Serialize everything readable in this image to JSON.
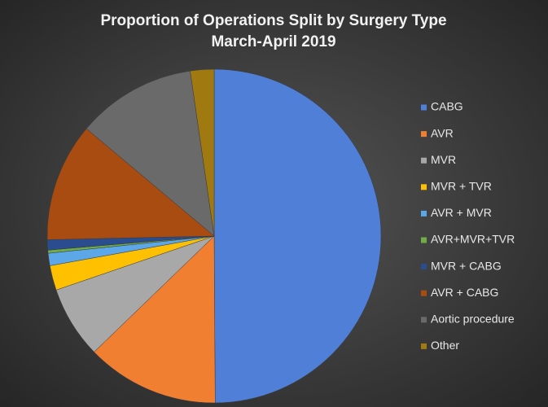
{
  "chart_data": {
    "type": "pie",
    "title": "Proportion of Operations Split by Surgery Type",
    "subtitle": "March-April 2019",
    "categories": [
      "CABG",
      "AVR",
      "MVR",
      "MVR + TVR",
      "AVR + MVR",
      "AVR+MVR+TVR",
      "MVR + CABG",
      "AVR + CABG",
      "Aortic procedure",
      "Other"
    ],
    "values": [
      50,
      12.9,
      7,
      2.4,
      1.2,
      0.3,
      1,
      11.5,
      11.6,
      2.3
    ],
    "colors": [
      "#4f7fd6",
      "#f07f32",
      "#a8a8a8",
      "#ffc000",
      "#5ba7e8",
      "#70ad47",
      "#2a4d8f",
      "#a84c12",
      "#6a6a6a",
      "#a07a10"
    ],
    "legend": "right"
  }
}
